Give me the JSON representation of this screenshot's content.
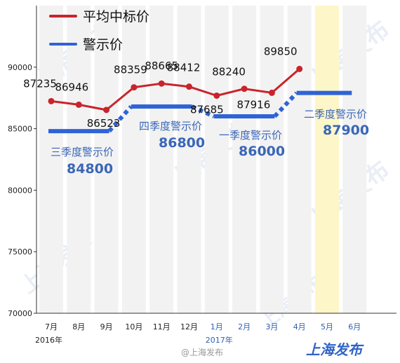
{
  "chart_data": {
    "type": "line",
    "categories": [
      "7月",
      "8月",
      "9月",
      "10月",
      "11月",
      "12月",
      "1月",
      "2月",
      "3月",
      "4月",
      "5月",
      "6月"
    ],
    "year_labels": [
      {
        "label": "2016年",
        "month_index": 0
      },
      {
        "label": "2017年",
        "month_index": 6
      }
    ],
    "ylim": [
      70000,
      95000
    ],
    "yticks": [
      70000,
      75000,
      80000,
      85000,
      90000
    ],
    "highlight_category": "5月",
    "series": [
      {
        "name": "平均中标价",
        "color": "#c8242b",
        "values": [
          87235,
          86946,
          86523,
          88359,
          88665,
          88412,
          87685,
          88240,
          87916,
          89850,
          null,
          null
        ]
      }
    ],
    "warning_price": {
      "name": "警示价",
      "color": "#2f63d6",
      "segments": [
        {
          "label": "三季度警示价",
          "value": 84800,
          "start": 0,
          "end": 2
        },
        {
          "label": "四季度警示价",
          "value": 86800,
          "start": 3,
          "end": 5
        },
        {
          "label": "一季度警示价",
          "value": 86000,
          "start": 6,
          "end": 8
        },
        {
          "label": "二季度警示价",
          "value": 87900,
          "start": 9,
          "end": 11
        }
      ]
    }
  },
  "watermark": "上海发布",
  "footer": {
    "weibo": "@上海发布",
    "brand": "上海发布"
  }
}
